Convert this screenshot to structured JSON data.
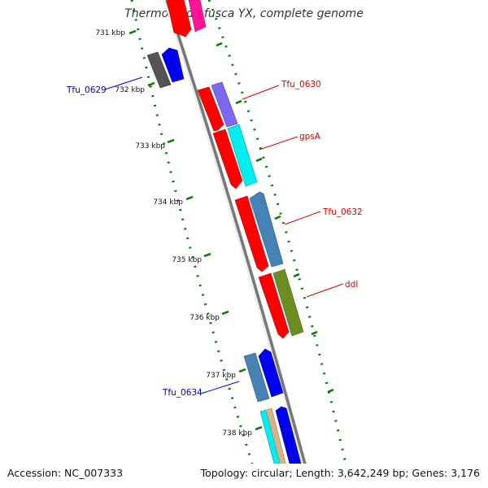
{
  "title": "Thermobifida fusca YX, complete genome",
  "footer": {
    "accession": "Accession: NC_007333",
    "summary": "Topology: circular; Length: 3,642,249 bp; Genes: 3,176"
  },
  "axis_labels": [
    "731 kbp",
    "732 kbp",
    "733 kbp",
    "734 kbp",
    "735 kbp",
    "736 kbp",
    "737 kbp",
    "738 kbp"
  ],
  "gene_labels": [
    {
      "text": "Tfu_0629",
      "color": "#0000cc"
    },
    {
      "text": "Tfu_0630",
      "color": "#e00000"
    },
    {
      "text": "gpsA",
      "color": "#e00000"
    },
    {
      "text": "Tfu_0632",
      "color": "#e00000"
    },
    {
      "text": "ddl",
      "color": "#e00000"
    },
    {
      "text": "Tfu_0634",
      "color": "#0000cc"
    }
  ],
  "feature_colors": {
    "cds": "#ff0000",
    "cog_blue": "#0000ee",
    "cog_steel": "#4682b4",
    "cog_gray": "#555555",
    "cog_purple": "#7b68ee",
    "cog_cyan": "#00eeee",
    "cog_olive": "#6b8e23",
    "cog_pink": "#ff1493",
    "cog_tan": "#d2b48c",
    "backbone": "#777777",
    "ticks": "#007700"
  }
}
